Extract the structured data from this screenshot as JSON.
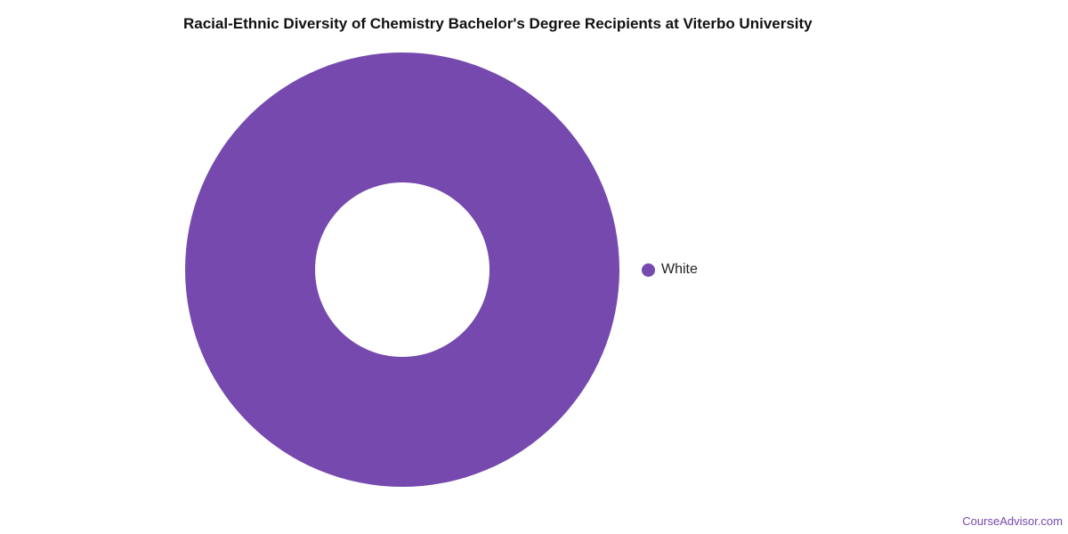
{
  "chart_data": {
    "type": "pie",
    "title": "Racial-Ethnic Diversity of Chemistry Bachelor's Degree Recipients at Viterbo University",
    "donut": true,
    "categories": [
      "White"
    ],
    "values": [
      100
    ],
    "colors": [
      "#7549ae"
    ],
    "legend_placement": "right"
  },
  "credit": "CourseAdvisor.com"
}
